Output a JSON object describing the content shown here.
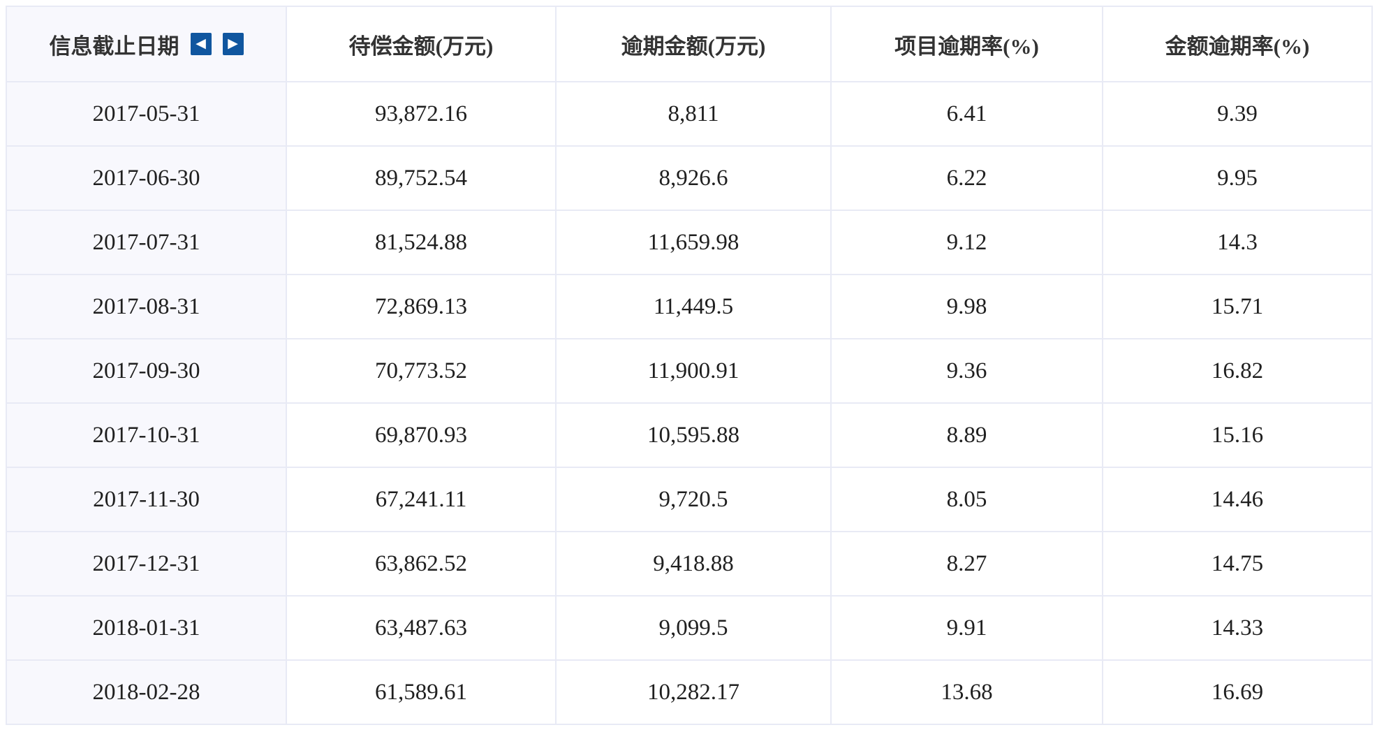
{
  "colors": {
    "accent_blue": "#10569f",
    "first_column_bg": "#f8f8fd",
    "grid_border": "#e8eaf5",
    "text": "#1f1f1f"
  },
  "controls": {
    "prev_icon": "◀",
    "next_icon": "▶"
  },
  "table": {
    "columns": [
      {
        "label": "信息截止日期"
      },
      {
        "label": "待偿金额(万元)"
      },
      {
        "label": "逾期金额(万元)"
      },
      {
        "label": "项目逾期率(%)"
      },
      {
        "label": "金额逾期率(%)"
      }
    ],
    "rows": [
      [
        "2017-05-31",
        "93,872.16",
        "8,811",
        "6.41",
        "9.39"
      ],
      [
        "2017-06-30",
        "89,752.54",
        "8,926.6",
        "6.22",
        "9.95"
      ],
      [
        "2017-07-31",
        "81,524.88",
        "11,659.98",
        "9.12",
        "14.3"
      ],
      [
        "2017-08-31",
        "72,869.13",
        "11,449.5",
        "9.98",
        "15.71"
      ],
      [
        "2017-09-30",
        "70,773.52",
        "11,900.91",
        "9.36",
        "16.82"
      ],
      [
        "2017-10-31",
        "69,870.93",
        "10,595.88",
        "8.89",
        "15.16"
      ],
      [
        "2017-11-30",
        "67,241.11",
        "9,720.5",
        "8.05",
        "14.46"
      ],
      [
        "2017-12-31",
        "63,862.52",
        "9,418.88",
        "8.27",
        "14.75"
      ],
      [
        "2018-01-31",
        "63,487.63",
        "9,099.5",
        "9.91",
        "14.33"
      ],
      [
        "2018-02-28",
        "61,589.61",
        "10,282.17",
        "13.68",
        "16.69"
      ]
    ]
  }
}
